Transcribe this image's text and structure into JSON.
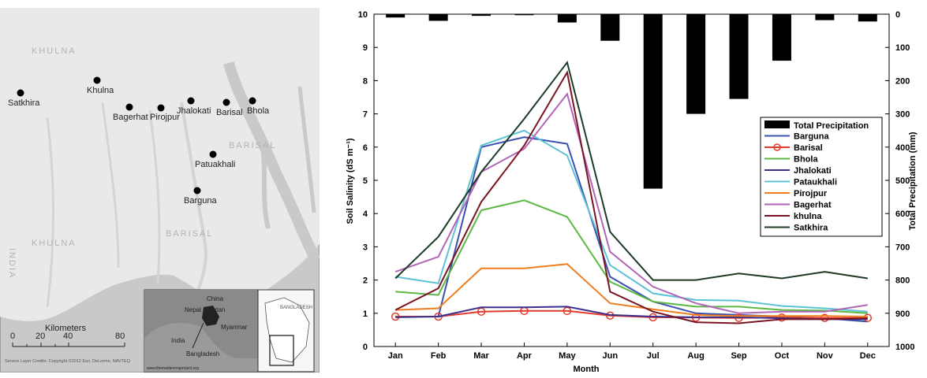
{
  "map": {
    "region_labels": [
      "KHULNA",
      "BARISAL",
      "BARISAL",
      "KHULNA",
      "INDIA"
    ],
    "cities": [
      "Satkhira",
      "Khulna",
      "Bagerhat",
      "Pirojpur",
      "Jhalokati",
      "Barisal",
      "Bhola",
      "Patuakhali",
      "Barguna"
    ],
    "scale": {
      "ticks": [
        "0",
        "20",
        "40",
        "80"
      ],
      "unit": "Kilometers"
    },
    "credits": "Service Layer Credits: Copyright ©2012 Esri, DeLorme, NAVTEQ",
    "inset_labels": [
      "China",
      "Nepal",
      "Bhutan",
      "India",
      "Myanmar",
      "Bangladesh"
    ],
    "inset_url": "www.themaidenmaproject.org",
    "inset_small_label": "BANGLADESH",
    "colors": {
      "land": "#e9e9e9",
      "water": "#c9c9c9",
      "city_marker": "#000000"
    }
  },
  "chart_data": {
    "type": "line",
    "xlabel": "Month",
    "ylabel": "Soil Salinity (dS m⁻¹)",
    "y2label": "Total Precipitation (mm)",
    "categories": [
      "Jan",
      "Feb",
      "Mar",
      "Apr",
      "May",
      "Jun",
      "Jul",
      "Aug",
      "Sep",
      "Oct",
      "Nov",
      "Dec"
    ],
    "ylim": [
      0,
      10
    ],
    "yticks": [
      "0",
      "1",
      "2",
      "3",
      "4",
      "5",
      "6",
      "7",
      "8",
      "9",
      "10"
    ],
    "y2lim": [
      0,
      1000
    ],
    "y2ticks": [
      "0",
      "100",
      "200",
      "300",
      "400",
      "500",
      "600",
      "700",
      "800",
      "900",
      "1000"
    ],
    "y2_inverted": true,
    "bars": {
      "name": "Total Precipitation",
      "color": "#000000",
      "values": [
        10,
        20,
        5,
        3,
        25,
        80,
        525,
        300,
        255,
        140,
        18,
        22
      ]
    },
    "series": [
      {
        "name": "Barguna",
        "color": "#3a4fb0",
        "values": [
          0.9,
          0.9,
          6.0,
          6.3,
          6.1,
          2.1,
          1.35,
          1.0,
          0.95,
          0.9,
          0.85,
          0.75
        ]
      },
      {
        "name": "Barisal",
        "color": "#e23b2e",
        "marker": "circle",
        "values": [
          0.9,
          0.9,
          1.05,
          1.07,
          1.07,
          0.93,
          0.88,
          0.87,
          0.86,
          0.87,
          0.86,
          0.86
        ]
      },
      {
        "name": "Bhola",
        "color": "#5cb843",
        "values": [
          1.65,
          1.55,
          4.1,
          4.4,
          3.9,
          1.95,
          1.35,
          1.2,
          1.2,
          1.1,
          1.08,
          1.0
        ]
      },
      {
        "name": "Jhalokati",
        "color": "#3a2f8c",
        "values": [
          0.88,
          0.9,
          1.18,
          1.18,
          1.2,
          0.95,
          0.9,
          0.88,
          0.88,
          0.85,
          0.82,
          0.82
        ]
      },
      {
        "name": "Pataukhali",
        "color": "#5cc3d6",
        "values": [
          2.1,
          1.9,
          6.05,
          6.5,
          5.75,
          2.45,
          1.6,
          1.4,
          1.38,
          1.22,
          1.15,
          1.05
        ]
      },
      {
        "name": "Pirojpur",
        "color": "#f07d1e",
        "values": [
          1.1,
          1.15,
          2.35,
          2.35,
          2.48,
          1.3,
          1.12,
          0.95,
          0.92,
          0.92,
          0.92,
          0.9
        ]
      },
      {
        "name": "Bagerhat",
        "color": "#b265b8",
        "values": [
          2.25,
          2.7,
          5.25,
          5.95,
          7.6,
          2.85,
          1.8,
          1.3,
          1.0,
          1.05,
          1.05,
          1.25
        ]
      },
      {
        "name": "khulna",
        "color": "#7a1422",
        "values": [
          1.1,
          1.75,
          4.35,
          6.05,
          8.25,
          1.65,
          1.05,
          0.73,
          0.7,
          0.82,
          0.82,
          0.85
        ]
      },
      {
        "name": "Satkhira",
        "color": "#1d3b24",
        "values": [
          2.05,
          3.3,
          5.25,
          6.85,
          8.55,
          3.45,
          2.0,
          2.0,
          2.2,
          2.05,
          2.25,
          2.05
        ]
      }
    ],
    "legend_position": "right",
    "grid": false
  }
}
